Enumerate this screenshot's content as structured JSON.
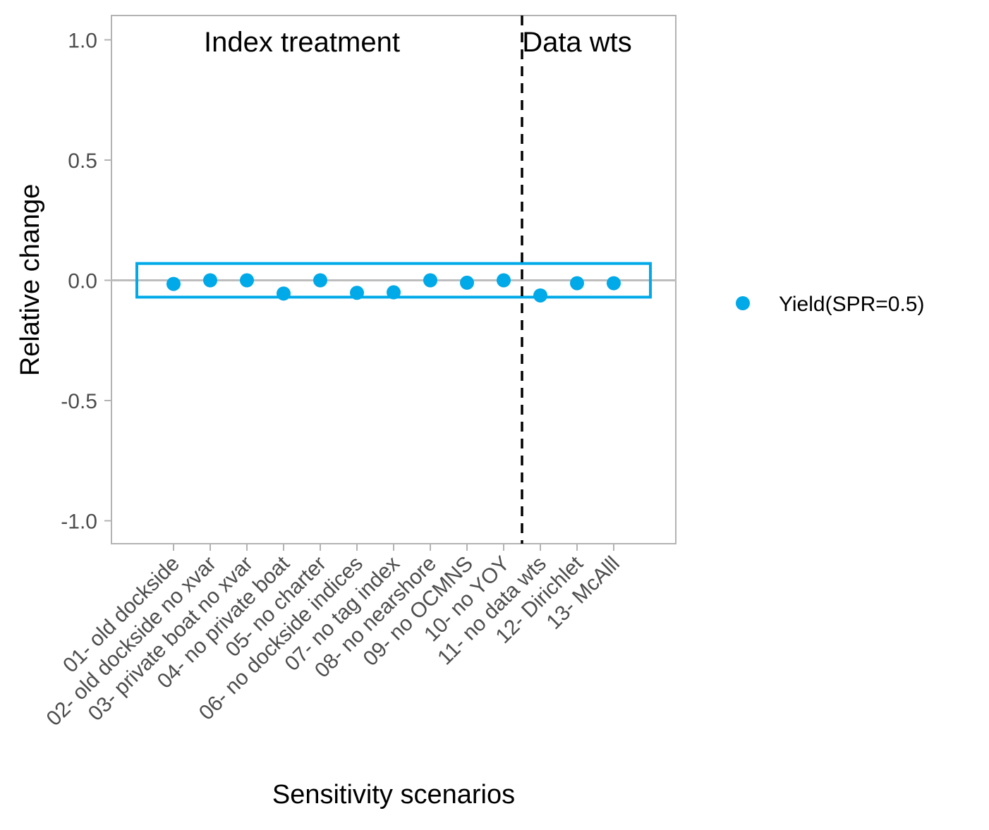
{
  "chart_data": {
    "type": "scatter",
    "title": "",
    "xlabel": "Sensitivity scenarios",
    "ylabel": "Relative change",
    "ylim": [
      -1.1,
      1.1
    ],
    "yticks": [
      "1.0",
      "0.5",
      "0.0",
      "-0.5",
      "-1.0"
    ],
    "ytick_values": [
      1.0,
      0.5,
      0.0,
      -0.5,
      -1.0
    ],
    "categories": [
      "01- old dockside",
      "02- old dockside no xvar",
      "03- private boat no xvar",
      "04- no private boat",
      "05- no charter",
      "06- no dockside indices",
      "07- no tag index",
      "08- no nearshore",
      "09- no OCMNS",
      "10- no YOY",
      "11- no data wts",
      "12- Dirichlet",
      "13- McAlll"
    ],
    "series": [
      {
        "name": "Yield(SPR=0.5)",
        "color": "#00A9E8",
        "values": [
          -0.015,
          0.0,
          0.0,
          -0.055,
          0.0,
          -0.052,
          -0.05,
          0.0,
          -0.01,
          0.0,
          -0.063,
          -0.012,
          -0.012
        ]
      }
    ],
    "reference_band": {
      "ymin": -0.07,
      "ymax": 0.07,
      "color": "#00A9E8"
    },
    "zero_line": {
      "y": 0.0,
      "color": "#bdbdbd"
    },
    "divider": {
      "after_category_index": 9,
      "style": "dashed",
      "color": "#000000"
    },
    "annotations": [
      "Index treatment",
      "Data wts"
    ],
    "legend_position": "right",
    "grid": false
  }
}
